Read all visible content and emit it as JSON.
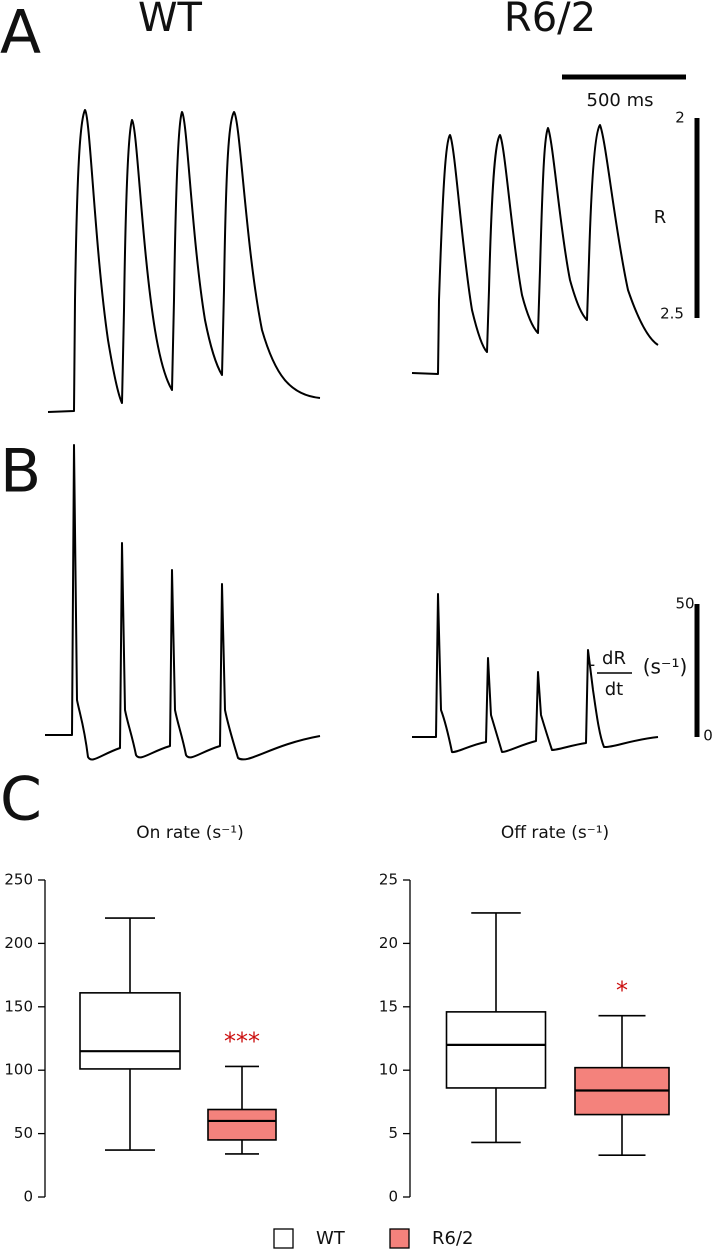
{
  "panels": {
    "A": {
      "label": "A",
      "left_title": "WT",
      "right_title": "R6/2",
      "time_scale": "500 ms",
      "scale_top": 2,
      "scale_name": "R",
      "scale_bottom": 2.5
    },
    "B": {
      "label": "B",
      "scale_top": 50,
      "scale_bottom": 0,
      "minus": "-",
      "numerator": "dR",
      "denominator": "dt",
      "unit": "(s⁻¹)"
    },
    "C": {
      "label": "C"
    }
  },
  "chart_data": [
    {
      "type": "box",
      "title": "On rate (s⁻¹)",
      "ylim": [
        0,
        250
      ],
      "yticks": [
        0,
        50,
        100,
        150,
        200,
        250
      ],
      "series": [
        {
          "name": "WT",
          "color": "#ffffff",
          "whisker_low": 37,
          "q1": 101,
          "median": 115,
          "q3": 161,
          "whisker_high": 220
        },
        {
          "name": "R6/2",
          "color": "#f4827c",
          "whisker_low": 34,
          "q1": 45,
          "median": 60,
          "q3": 69,
          "whisker_high": 103
        }
      ],
      "annotation": {
        "text": "***",
        "color": "#cc1111"
      }
    },
    {
      "type": "box",
      "title": "Off rate (s⁻¹)",
      "ylim": [
        0,
        25
      ],
      "yticks": [
        0,
        5,
        10,
        15,
        20,
        25
      ],
      "series": [
        {
          "color": "#ffffff",
          "whisker_low": 4.3,
          "q1": 8.6,
          "median": 12,
          "q3": 14.6,
          "whisker_high": 22.4
        },
        {
          "color": "#f4827c",
          "whisker_low": 3.3,
          "q1": 6.5,
          "median": 8.4,
          "q3": 10.2,
          "whisker_high": 14.3
        }
      ],
      "annotation": {
        "text": "*",
        "color": "#cc1111"
      }
    }
  ]
}
